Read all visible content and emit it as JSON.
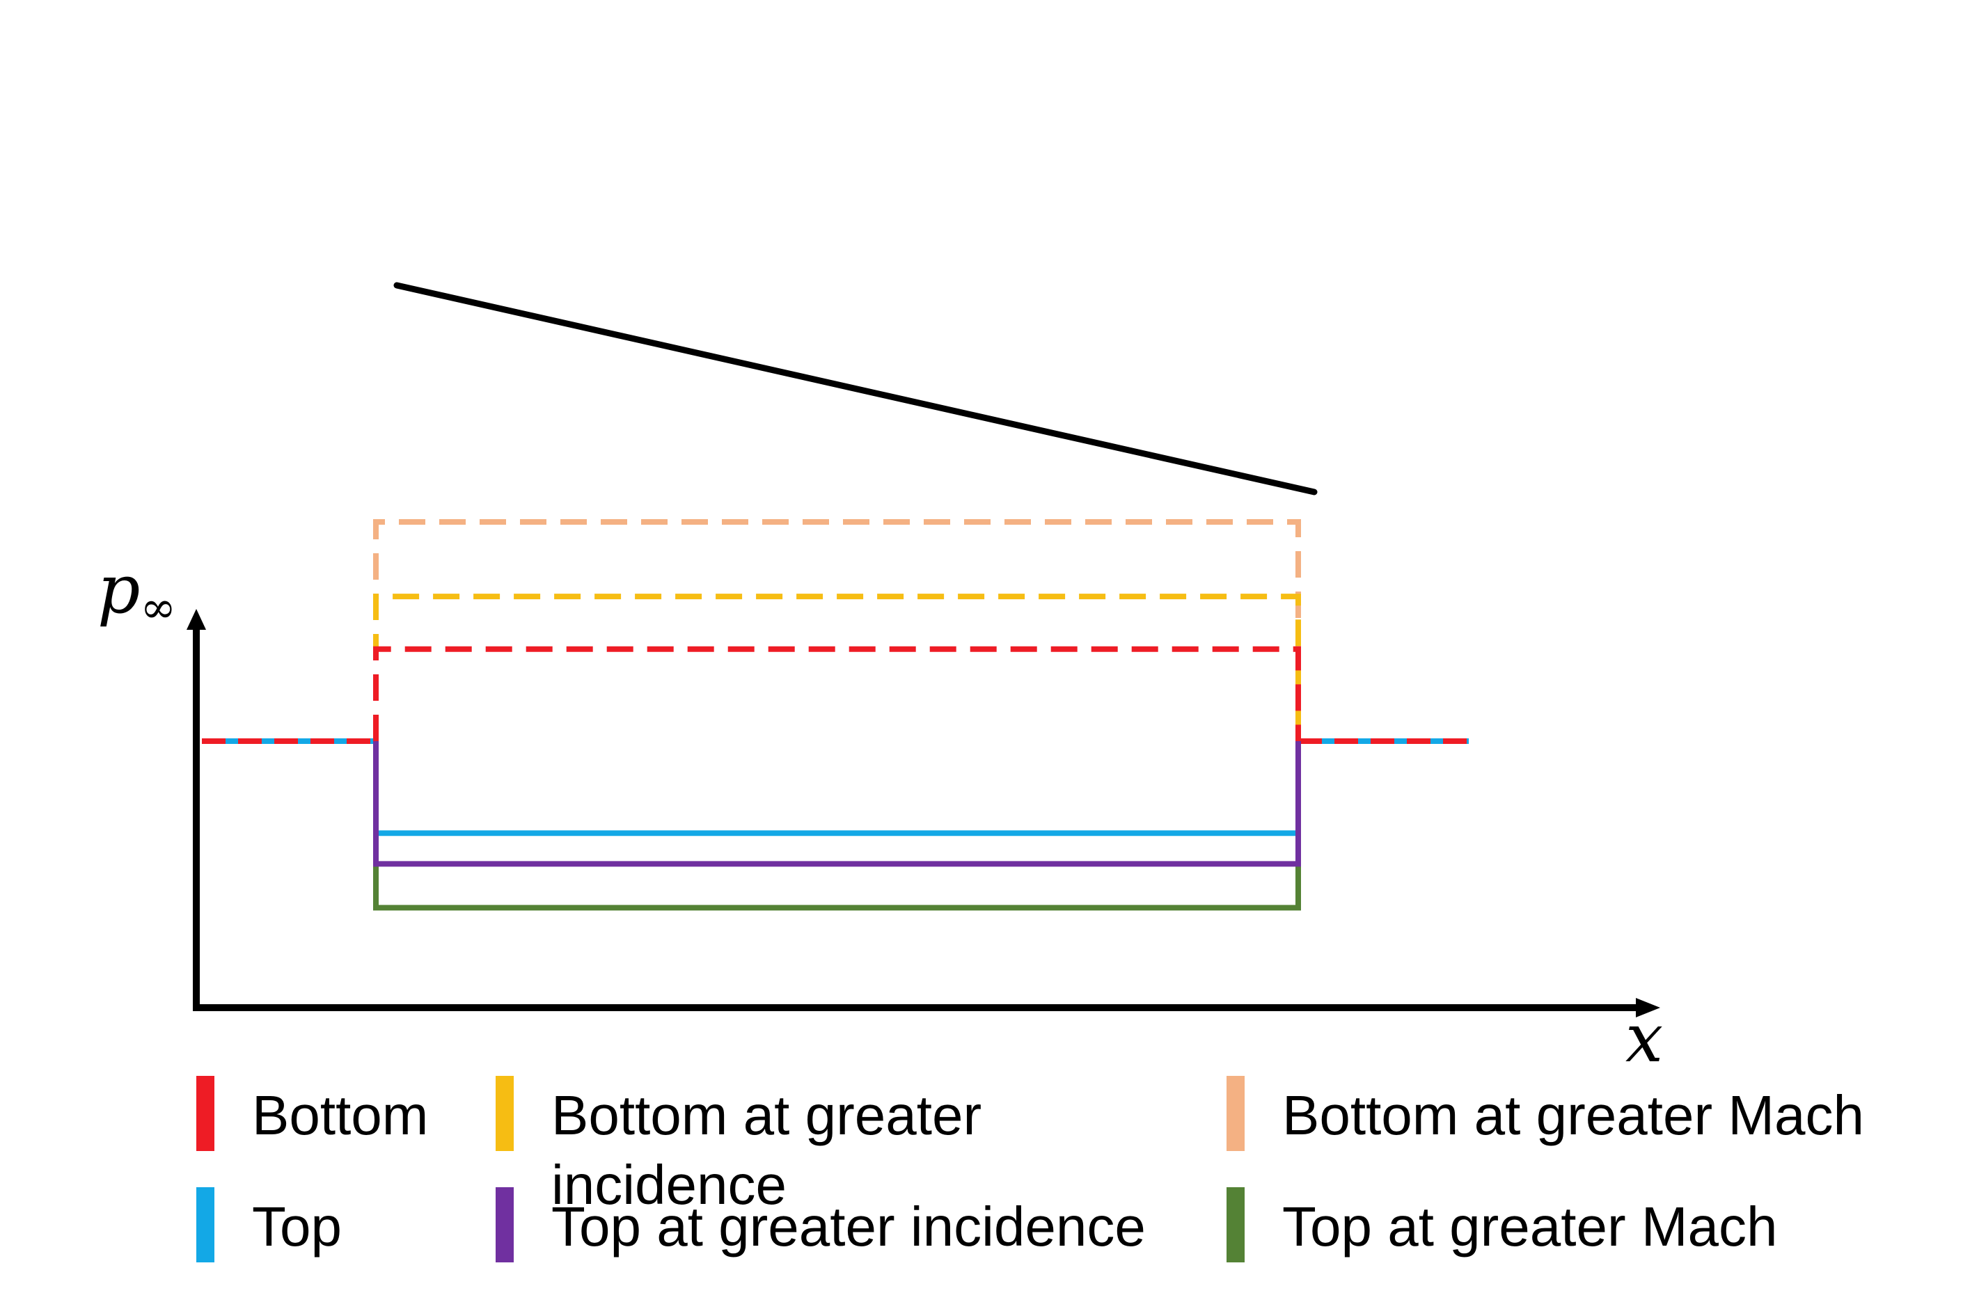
{
  "axes": {
    "y_label": "p",
    "y_label_subscript": "∞",
    "x_label": "x"
  },
  "chart_data": {
    "type": "line",
    "x_ticks_shown": false,
    "y_ticks_shown": false,
    "series": [
      {
        "name": "Bottom",
        "color": "#ee1c25",
        "style": "dashed",
        "relative_level": 0.71
      },
      {
        "name": "Bottom at greater incidence",
        "color": "#f6bd13",
        "style": "dashed",
        "relative_level": 0.83
      },
      {
        "name": "Bottom at greater Mach",
        "color": "#f4b183",
        "style": "dashed",
        "relative_level": 1.0
      },
      {
        "name": "Top",
        "color": "#13a8e6",
        "style": "solid",
        "relative_level": 0.29
      },
      {
        "name": "Top at greater incidence",
        "color": "#7030a0",
        "style": "solid",
        "relative_level": 0.22
      },
      {
        "name": "Top at greater Mach",
        "color": "#548235",
        "style": "solid",
        "relative_level": 0.12
      }
    ],
    "freestream_level": 0.5,
    "grid": false,
    "legend_position": "bottom"
  },
  "airfoil": {
    "color": "#000000"
  },
  "legend": {
    "items": [
      {
        "lines": [
          "Bottom"
        ],
        "color": "#ee1c25"
      },
      {
        "lines": [
          "Bottom at greater",
          "incidence"
        ],
        "color": "#f6bd13"
      },
      {
        "lines": [
          "Bottom at greater Mach"
        ],
        "color": "#f4b183"
      },
      {
        "lines": [
          "Top"
        ],
        "color": "#13a8e6"
      },
      {
        "lines": [
          "Top at greater incidence"
        ],
        "color": "#7030a0"
      },
      {
        "lines": [
          "Top at greater Mach"
        ],
        "color": "#548235"
      }
    ]
  }
}
